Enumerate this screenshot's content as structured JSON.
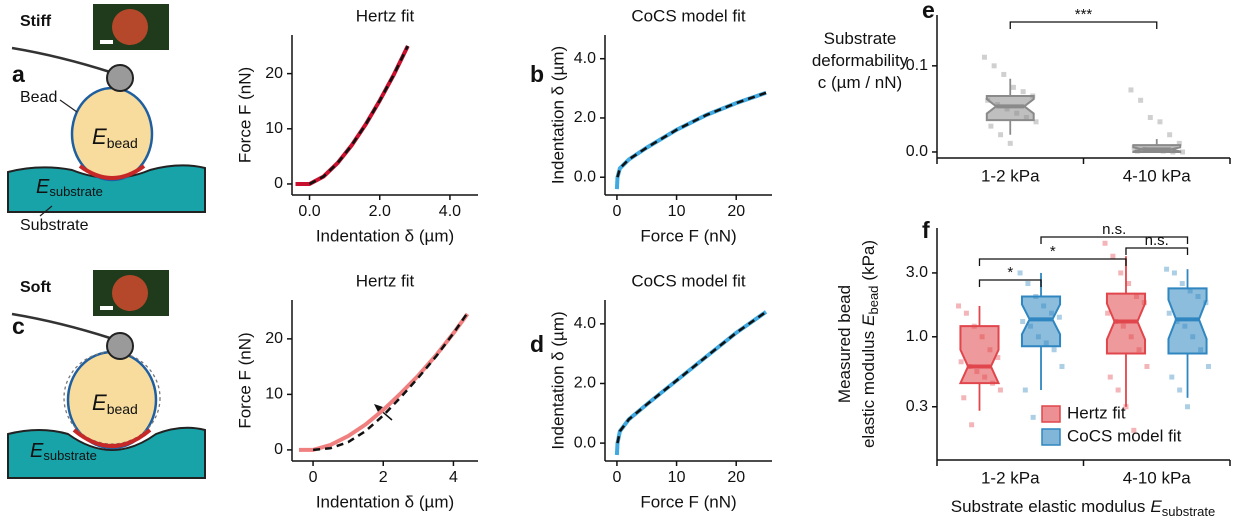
{
  "panel_labels": [
    "a",
    "b",
    "c",
    "d",
    "e",
    "f"
  ],
  "schematics": [
    {
      "state": "Stiff",
      "bead_label": "Bead",
      "substrate_label": "Substrate",
      "bead_modulus": {
        "symbol": "E",
        "subscript": "bead"
      },
      "substrate_modulus": {
        "symbol": "E",
        "subscript": "substrate"
      }
    },
    {
      "state": "Soft",
      "bead_modulus": {
        "symbol": "E",
        "subscript": "bead"
      },
      "substrate_modulus": {
        "symbol": "E",
        "subscript": "substrate"
      }
    }
  ],
  "chart_data": [
    {
      "type": "line",
      "title": "Hertz fit",
      "x_label": "Indentation δ (µm)",
      "y_label": "Force F (nN)",
      "xlim": [
        -0.5,
        4.8
      ],
      "xticks": [
        {
          "value": 0,
          "label": "0.0"
        },
        {
          "value": 2,
          "label": "2.0"
        },
        {
          "value": 4,
          "label": "4.0"
        }
      ],
      "ylim": [
        -2,
        27
      ],
      "yticks": [
        0,
        10,
        20
      ],
      "series": [
        {
          "color": "#c8102e",
          "line_style": "solid",
          "x": [
            -0.4,
            -0.2,
            0,
            0.4,
            0.8,
            1.2,
            1.6,
            2.0,
            2.4,
            2.8
          ],
          "values": [
            0,
            0,
            0,
            1.35,
            3.8,
            7.0,
            10.8,
            15.1,
            19.8,
            25
          ]
        },
        {
          "color": "#111111",
          "line_style": "dashed",
          "x": [
            0,
            0.4,
            0.8,
            1.2,
            1.6,
            2.0,
            2.4,
            2.8
          ],
          "values": [
            0,
            1.35,
            3.8,
            7.0,
            10.8,
            15.1,
            19.8,
            25
          ]
        }
      ]
    },
    {
      "type": "line",
      "title": "CoCS model fit",
      "x_label": "Force F (nN)",
      "y_label": "Indentation δ (µm)",
      "xlim": [
        -2,
        26
      ],
      "xticks": [
        0,
        10,
        20
      ],
      "ylim": [
        -0.6,
        4.8
      ],
      "yticks": [
        {
          "value": 0,
          "label": "0.0"
        },
        {
          "value": 2,
          "label": "2.0"
        },
        {
          "value": 4,
          "label": "4.0"
        }
      ],
      "series": [
        {
          "color": "#3fa9e0",
          "line_style": "solid",
          "x": [
            0,
            0.1,
            0.5,
            2,
            5,
            10,
            15,
            20,
            25
          ],
          "values": [
            -0.4,
            0,
            0.3,
            0.6,
            1.0,
            1.6,
            2.1,
            2.5,
            2.85
          ]
        },
        {
          "color": "#111111",
          "line_style": "dashed",
          "x": [
            0.1,
            0.5,
            2,
            5,
            10,
            15,
            20,
            25
          ],
          "values": [
            0,
            0.3,
            0.6,
            1.0,
            1.6,
            2.1,
            2.5,
            2.85
          ]
        }
      ]
    },
    {
      "type": "line",
      "title": "Hertz fit",
      "x_label": "Indentation δ (µm)",
      "y_label": "Force F (nN)",
      "xlim": [
        -0.6,
        4.7
      ],
      "xticks": [
        0,
        2,
        4
      ],
      "ylim": [
        -2,
        27
      ],
      "yticks": [
        0,
        10,
        20
      ],
      "series": [
        {
          "color": "#f08080",
          "line_style": "solid",
          "x": [
            -0.4,
            0,
            0.5,
            1,
            1.5,
            2,
            2.5,
            3,
            3.5,
            4,
            4.4
          ],
          "values": [
            0,
            0,
            0.9,
            2.5,
            4.6,
            7.2,
            10.2,
            13.4,
            17,
            21,
            24.5
          ]
        },
        {
          "color": "#111111",
          "line_style": "dashed",
          "x": [
            0,
            0.5,
            1,
            1.5,
            2,
            2.5,
            3,
            3.5,
            4,
            4.4
          ],
          "values": [
            0,
            0.3,
            1.4,
            3.4,
            6.2,
            9.5,
            13,
            16.8,
            21,
            24.7
          ]
        }
      ]
    },
    {
      "type": "line",
      "title": "CoCS model fit",
      "x_label": "Force F (nN)",
      "y_label": "Indentation δ (µm)",
      "xlim": [
        -2,
        26
      ],
      "xticks": [
        0,
        10,
        20
      ],
      "ylim": [
        -0.6,
        4.8
      ],
      "yticks": [
        {
          "value": 0,
          "label": "0.0"
        },
        {
          "value": 2,
          "label": "2.0"
        },
        {
          "value": 4,
          "label": "4.0"
        }
      ],
      "series": [
        {
          "color": "#3fa9e0",
          "line_style": "solid",
          "x": [
            0,
            0.1,
            0.5,
            2,
            5,
            10,
            15,
            20,
            25
          ],
          "values": [
            -0.4,
            0,
            0.4,
            0.8,
            1.3,
            2.1,
            2.9,
            3.7,
            4.4
          ]
        },
        {
          "color": "#111111",
          "line_style": "dashed",
          "x": [
            0.1,
            0.5,
            2,
            5,
            10,
            15,
            20,
            25
          ],
          "values": [
            0,
            0.4,
            0.8,
            1.3,
            2.1,
            2.9,
            3.7,
            4.4
          ]
        }
      ]
    },
    {
      "type": "box",
      "y_label": [
        "Substrate",
        "deformability",
        "c (µm / nN)"
      ],
      "categories": [
        "1-2 kPa",
        "4-10 kPa"
      ],
      "ylim": [
        -0.007,
        0.159
      ],
      "yticks": [
        {
          "value": 0,
          "label": "0.0"
        },
        {
          "value": 0.1,
          "label": "0.1"
        }
      ],
      "significance": [
        "***"
      ],
      "series": [
        {
          "color": "#8a8a8a",
          "boxes": [
            {
              "whisker_low": 0.02,
              "q1": 0.037,
              "median": 0.053,
              "q3": 0.065,
              "whisker_high": 0.085,
              "points": [
                0.11,
                0.1,
                0.09,
                0.075,
                0.07,
                0.065,
                0.06,
                0.055,
                0.05,
                0.045,
                0.04,
                0.035,
                0.03,
                0.02,
                0.01
              ]
            },
            {
              "whisker_low": 0,
              "q1": 0,
              "median": 0.003,
              "q3": 0.008,
              "whisker_high": 0.015,
              "points": [
                0.072,
                0.06,
                0.04,
                0.035,
                0.02,
                0.01,
                0.005,
                0.003,
                0.002,
                0.001,
                0,
                0,
                0.001
              ]
            }
          ]
        }
      ]
    },
    {
      "type": "box",
      "log_scale": true,
      "y_label": [
        {
          "text": "Measured bead"
        },
        {
          "text": "elastic modulus",
          "symbol": "E",
          "subscript": "bead",
          "unit": "(kPa)"
        }
      ],
      "x_label": {
        "text": "Substrate elastic modulus",
        "symbol": "E",
        "subscript": "substrate"
      },
      "categories": [
        "1-2 kPa",
        "4-10 kPa"
      ],
      "ylim": [
        0.12,
        6.5
      ],
      "yticks": [
        0.3,
        {
          "value": 1,
          "label": "1.0"
        },
        {
          "value": 3,
          "label": "3.0"
        }
      ],
      "significance": [
        "n.s.",
        "*",
        "n.s.",
        "*"
      ],
      "legend": "bottom-right",
      "series": [
        {
          "name": "Hertz fit",
          "color": "#e0464b",
          "boxes": [
            {
              "whisker_low": 0.28,
              "q1": 0.45,
              "median": 0.6,
              "q3": 1.2,
              "whisker_high": 1.7,
              "points": [
                1.7,
                1.5,
                1.2,
                1.0,
                0.8,
                0.7,
                0.65,
                0.6,
                0.55,
                0.5,
                0.45,
                0.4,
                0.35,
                0.22
              ]
            },
            {
              "whisker_low": 0.3,
              "q1": 0.75,
              "median": 1.3,
              "q3": 2.1,
              "whisker_high": 4,
              "points": [
                5,
                4,
                3,
                2.5,
                2,
                1.8,
                1.5,
                1.3,
                1.2,
                1.0,
                0.8,
                0.6,
                0.5,
                0.4,
                0.3,
                0.2
              ]
            }
          ]
        },
        {
          "name": "CoCS model fit",
          "color": "#2f86c0",
          "boxes": [
            {
              "whisker_low": 0.4,
              "q1": 0.85,
              "median": 1.35,
              "q3": 2.0,
              "whisker_high": 3,
              "points": [
                3.0,
                2.5,
                2.0,
                1.7,
                1.5,
                1.4,
                1.3,
                1.2,
                1.0,
                0.9,
                0.8,
                0.6,
                0.4,
                0.25
              ]
            },
            {
              "whisker_low": 0.35,
              "q1": 0.75,
              "median": 1.35,
              "q3": 2.3,
              "whisker_high": 3.2,
              "points": [
                3.2,
                3,
                2.5,
                2.2,
                2,
                1.8,
                1.5,
                1.3,
                1.2,
                1,
                0.8,
                0.6,
                0.5,
                0.4,
                0.3
              ]
            }
          ]
        }
      ]
    }
  ]
}
